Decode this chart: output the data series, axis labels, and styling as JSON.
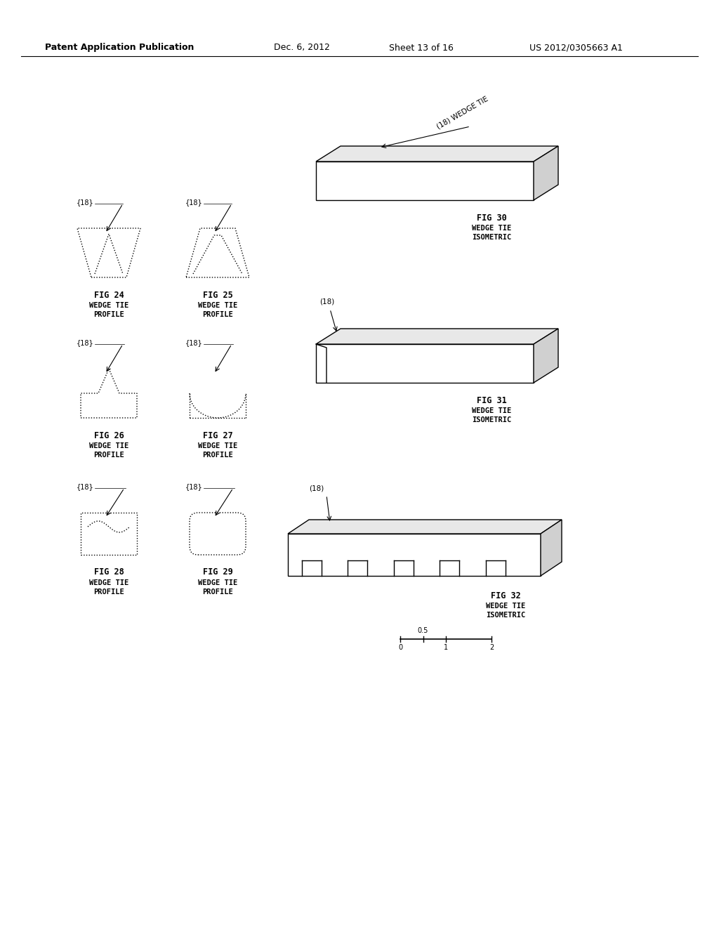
{
  "bg_color": "#ffffff",
  "header_text": "Patent Application Publication",
  "header_date": "Dec. 6, 2012",
  "header_sheet": "Sheet 13 of 16",
  "header_patent": "US 2012/0305663 A1",
  "title_fontsize": 9,
  "label_fontsize": 7.5
}
